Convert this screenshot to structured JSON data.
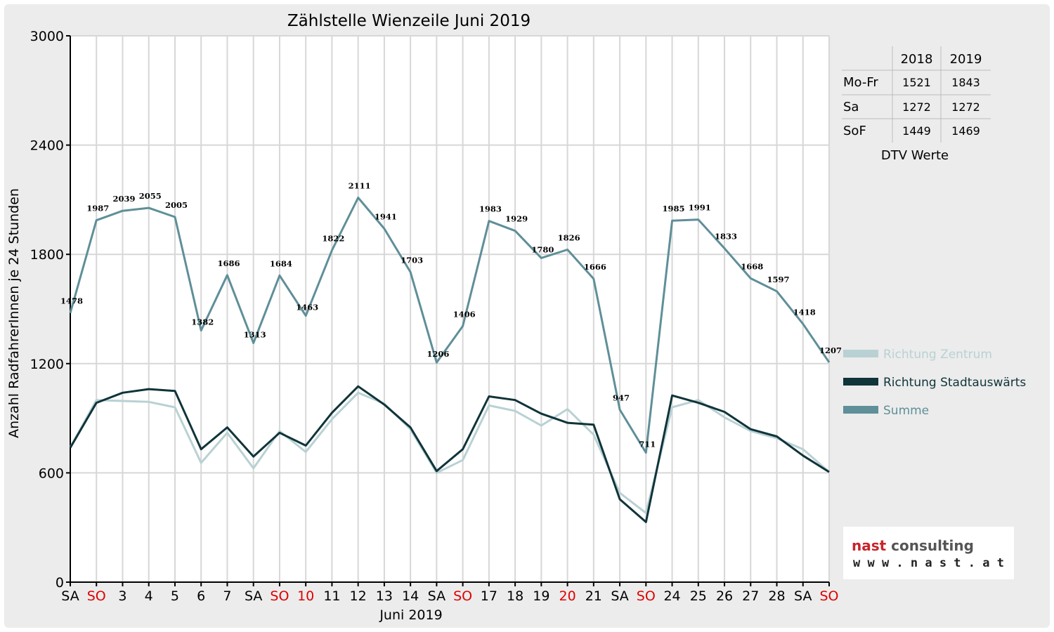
{
  "chart_data": {
    "type": "line",
    "title": "Zählstelle Wienzeile Juni 2019",
    "xlabel": "Juni 2019",
    "ylabel": "Anzahl RadfahrerInnen je 24 Stunden",
    "ylim": [
      0,
      3000
    ],
    "yticks": [
      0,
      600,
      1200,
      1800,
      2400,
      3000
    ],
    "grid": true,
    "legend_position": "right",
    "categories": [
      "SA",
      "SO",
      "3",
      "4",
      "5",
      "6",
      "7",
      "SA",
      "SO",
      "10",
      "11",
      "12",
      "13",
      "14",
      "SA",
      "SO",
      "17",
      "18",
      "19",
      "20",
      "21",
      "SA",
      "SO",
      "24",
      "25",
      "26",
      "27",
      "28",
      "SA",
      "SO"
    ],
    "category_colors": [
      "#000000",
      "#e00000",
      "#000000",
      "#000000",
      "#000000",
      "#000000",
      "#000000",
      "#000000",
      "#e00000",
      "#e00000",
      "#000000",
      "#000000",
      "#000000",
      "#000000",
      "#000000",
      "#e00000",
      "#000000",
      "#000000",
      "#000000",
      "#e00000",
      "#000000",
      "#000000",
      "#e00000",
      "#000000",
      "#000000",
      "#000000",
      "#000000",
      "#000000",
      "#000000",
      "#e00000"
    ],
    "series": [
      {
        "name": "Richtung Zentrum",
        "color": "#b9d1d3",
        "values": [
          740,
          1000,
          995,
          990,
          960,
          655,
          820,
          625,
          830,
          715,
          895,
          1040,
          980,
          840,
          600,
          670,
          970,
          940,
          860,
          950,
          810,
          490,
          380,
          960,
          1000,
          905,
          830,
          790,
          730,
          605
        ]
      },
      {
        "name": "Richtung Stadtauswärts",
        "color": "#0f343a",
        "values": [
          738,
          985,
          1040,
          1060,
          1050,
          730,
          850,
          690,
          820,
          750,
          930,
          1075,
          975,
          850,
          610,
          730,
          1020,
          1000,
          925,
          875,
          865,
          455,
          330,
          1025,
          985,
          935,
          840,
          800,
          695,
          605
        ]
      },
      {
        "name": "Summe",
        "color": "#5f8f98",
        "values": [
          1478,
          1987,
          2039,
          2055,
          2005,
          1382,
          1686,
          1313,
          1684,
          1463,
          1822,
          2111,
          1941,
          1703,
          1206,
          1406,
          1983,
          1929,
          1780,
          1826,
          1666,
          947,
          711,
          1985,
          1991,
          1833,
          1668,
          1597,
          1418,
          1207
        ],
        "labels": [
          "1478",
          "1987",
          "2039",
          "2055",
          "2005",
          "1382",
          "1686",
          "1313",
          "1684",
          "1463",
          "1822",
          "2111",
          "1941",
          "1703",
          "1206",
          "1406",
          "1983",
          "1929",
          "1780",
          "1826",
          "1666",
          "947",
          "711",
          "1985",
          "1991",
          "1833",
          "1668",
          "1597",
          "1418",
          "1207"
        ]
      }
    ],
    "dtv_table": {
      "caption": "DTV Werte",
      "headers": [
        "",
        "2018",
        "2019"
      ],
      "rows": [
        [
          "Mo-Fr",
          "1521",
          "1843"
        ],
        [
          "Sa",
          "1272",
          "1272"
        ],
        [
          "SoF",
          "1449",
          "1469"
        ]
      ]
    }
  },
  "logo": {
    "main_part1": "nast",
    "main_part2": " consulting",
    "subtitle": "w w w . n a s t . a t",
    "color_accent": "#c8242b"
  }
}
